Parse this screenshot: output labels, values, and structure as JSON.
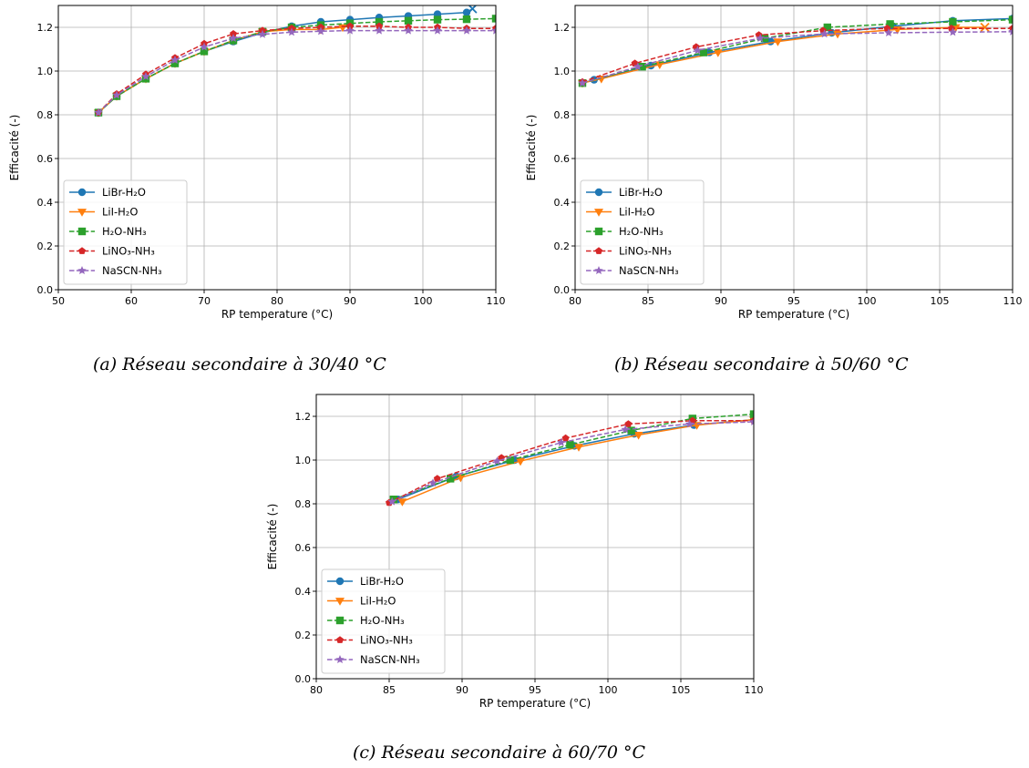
{
  "figure": {
    "captions": [
      "(a) Réseau secondaire à 30/40 °C",
      "(b) Réseau secondaire à 50/60 °C",
      "(c) Réseau secondaire à 60/70 °C"
    ]
  },
  "series_styles": {
    "LiBr-H₂O": {
      "color": "#1f77b4",
      "marker": "circle",
      "dash": "solid"
    },
    "LiI-H₂O": {
      "color": "#ff7f0e",
      "marker": "triangle-down",
      "dash": "solid"
    },
    "H₂O-NH₃": {
      "color": "#2ca02c",
      "marker": "square",
      "dash": "dashed"
    },
    "LiNO₃-NH₃": {
      "color": "#d62728",
      "marker": "pentagon",
      "dash": "dashed"
    },
    "NaSCN-NH₃": {
      "color": "#9467bd",
      "marker": "star",
      "dash": "dashed"
    }
  },
  "chart_data": [
    {
      "type": "line",
      "xlabel": "RP temperature (°C)",
      "ylabel": "Efficacité (-)",
      "xlim": [
        50,
        110
      ],
      "ylim": [
        0.0,
        1.3
      ],
      "xticks": [
        50,
        60,
        70,
        80,
        90,
        100,
        110
      ],
      "yticks": [
        0.0,
        0.2,
        0.4,
        0.6,
        0.8,
        1.0,
        1.2
      ],
      "grid": true,
      "legend_position": "lower-left",
      "end_markers": [
        "x"
      ],
      "series": [
        {
          "name": "LiBr-H₂O",
          "x": [
            55.5,
            58,
            62,
            66,
            70,
            74,
            78,
            82,
            86,
            90,
            94,
            98,
            102,
            106,
            106.8
          ],
          "y": [
            0.81,
            0.885,
            0.965,
            1.035,
            1.09,
            1.135,
            1.175,
            1.205,
            1.225,
            1.235,
            1.245,
            1.252,
            1.26,
            1.268,
            1.285
          ],
          "end_marker": "x"
        },
        {
          "name": "LiI-H₂O",
          "x": [
            55.5,
            58,
            62,
            66,
            70,
            74,
            78,
            82,
            86,
            89
          ],
          "y": [
            0.81,
            0.885,
            0.965,
            1.035,
            1.09,
            1.14,
            1.18,
            1.19,
            1.19,
            1.2
          ]
        },
        {
          "name": "H₂O-NH₃",
          "x": [
            55.5,
            58,
            62,
            66,
            70,
            74,
            78,
            82,
            86,
            90,
            94,
            98,
            102,
            106,
            110
          ],
          "y": [
            0.81,
            0.885,
            0.965,
            1.035,
            1.09,
            1.14,
            1.18,
            1.2,
            1.21,
            1.218,
            1.225,
            1.23,
            1.235,
            1.237,
            1.24
          ]
        },
        {
          "name": "LiNO₃-NH₃",
          "x": [
            55.5,
            58,
            62,
            66,
            70,
            74,
            78,
            82,
            86,
            90,
            94,
            98,
            102,
            106,
            110
          ],
          "y": [
            0.81,
            0.895,
            0.985,
            1.06,
            1.125,
            1.17,
            1.185,
            1.195,
            1.2,
            1.205,
            1.205,
            1.2,
            1.2,
            1.195,
            1.195
          ]
        },
        {
          "name": "NaSCN-NH₃",
          "x": [
            55.5,
            58,
            62,
            66,
            70,
            74,
            78,
            82,
            86,
            90,
            94,
            98,
            102,
            106,
            110
          ],
          "y": [
            0.81,
            0.89,
            0.975,
            1.05,
            1.11,
            1.15,
            1.168,
            1.178,
            1.182,
            1.185,
            1.185,
            1.185,
            1.185,
            1.185,
            1.185
          ]
        }
      ]
    },
    {
      "type": "line",
      "xlabel": "RP temperature (°C)",
      "ylabel": "Efficacité (-)",
      "xlim": [
        80,
        110
      ],
      "ylim": [
        0.0,
        1.3
      ],
      "xticks": [
        80,
        85,
        90,
        95,
        100,
        105,
        110
      ],
      "yticks": [
        0.0,
        0.2,
        0.4,
        0.6,
        0.8,
        1.0,
        1.2
      ],
      "grid": true,
      "legend_position": "lower-left",
      "end_markers": [
        "x"
      ],
      "series": [
        {
          "name": "LiBr-H₂O",
          "x": [
            80.5,
            81.3,
            85.2,
            89.2,
            93.4,
            97.6,
            101.8,
            105.9,
            110
          ],
          "y": [
            0.945,
            0.96,
            1.025,
            1.085,
            1.135,
            1.175,
            1.205,
            1.23,
            1.24
          ]
        },
        {
          "name": "LiI-H₂O",
          "x": [
            80.5,
            81.8,
            85.8,
            89.8,
            93.9,
            98,
            102.1,
            106.1,
            108.1
          ],
          "y": [
            0.945,
            0.965,
            1.03,
            1.085,
            1.135,
            1.17,
            1.19,
            1.2,
            1.2
          ],
          "end_marker": "x"
        },
        {
          "name": "H₂O-NH₃",
          "x": [
            80.5,
            84.6,
            88.8,
            93,
            97.3,
            101.6,
            105.9,
            110
          ],
          "y": [
            0.945,
            1.02,
            1.085,
            1.15,
            1.2,
            1.215,
            1.225,
            1.235
          ]
        },
        {
          "name": "LiNO₃-NH₃",
          "x": [
            80.5,
            84.1,
            88.3,
            92.6,
            97,
            101.4,
            105.8,
            110
          ],
          "y": [
            0.95,
            1.035,
            1.11,
            1.165,
            1.185,
            1.195,
            1.195,
            1.195
          ]
        },
        {
          "name": "NaSCN-NH₃",
          "x": [
            80.5,
            84.3,
            88.4,
            92.7,
            97.1,
            101.5,
            105.9,
            110
          ],
          "y": [
            0.945,
            1.02,
            1.095,
            1.15,
            1.17,
            1.175,
            1.178,
            1.18
          ]
        }
      ]
    },
    {
      "type": "line",
      "xlabel": "RP temperature (°C)",
      "ylabel": "Efficacité (-)",
      "xlim": [
        80,
        110
      ],
      "ylim": [
        0.0,
        1.3
      ],
      "xticks": [
        80,
        85,
        90,
        95,
        100,
        105,
        110
      ],
      "yticks": [
        0.0,
        0.2,
        0.4,
        0.6,
        0.8,
        1.0,
        1.2
      ],
      "grid": true,
      "legend_position": "lower-left",
      "series": [
        {
          "name": "LiBr-H₂O",
          "x": [
            85.6,
            89.6,
            93.6,
            97.7,
            101.8,
            105.9,
            110
          ],
          "y": [
            0.82,
            0.925,
            1.0,
            1.065,
            1.12,
            1.16,
            1.185
          ]
        },
        {
          "name": "LiI-H₂O",
          "x": [
            85.9,
            89.9,
            94,
            98,
            102.1,
            106.1,
            110
          ],
          "y": [
            0.81,
            0.92,
            0.995,
            1.06,
            1.115,
            1.16,
            1.185
          ]
        },
        {
          "name": "H₂O-NH₃",
          "x": [
            85.3,
            89.2,
            93.3,
            97.4,
            101.6,
            105.8,
            110
          ],
          "y": [
            0.82,
            0.915,
            1.0,
            1.07,
            1.135,
            1.19,
            1.21
          ]
        },
        {
          "name": "LiNO₃-NH₃",
          "x": [
            85,
            88.3,
            92.7,
            97.1,
            101.4,
            105.8,
            110
          ],
          "y": [
            0.805,
            0.915,
            1.01,
            1.1,
            1.165,
            1.18,
            1.18
          ]
        },
        {
          "name": "NaSCN-NH₃",
          "x": [
            85.2,
            88,
            92.4,
            96.8,
            101.2,
            105.6,
            110
          ],
          "y": [
            0.81,
            0.895,
            0.995,
            1.08,
            1.14,
            1.165,
            1.175
          ]
        }
      ]
    }
  ]
}
